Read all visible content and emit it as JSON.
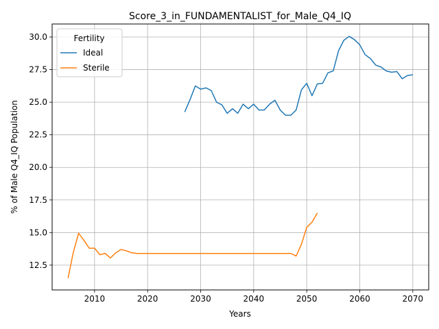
{
  "chart_data": {
    "type": "line",
    "title": "Score_3_in_FUNDAMENTALIST_for_Male_Q4_IQ",
    "xlabel": "Years",
    "ylabel": "% of Male Q4_IQ Population",
    "xlim": [
      2002,
      2073
    ],
    "ylim": [
      10.6,
      31.0
    ],
    "xticks": [
      2010,
      2020,
      2030,
      2040,
      2050,
      2060,
      2070
    ],
    "xtick_labels": [
      "2010",
      "2020",
      "2030",
      "2040",
      "2050",
      "2060",
      "2070"
    ],
    "yticks": [
      12.5,
      15.0,
      17.5,
      20.0,
      22.5,
      25.0,
      27.5,
      30.0
    ],
    "ytick_labels": [
      "12.5",
      "15.0",
      "17.5",
      "20.0",
      "22.5",
      "25.0",
      "27.5",
      "30.0"
    ],
    "grid": true,
    "legend": {
      "title": "Fertility",
      "placement": "top-left"
    },
    "series": [
      {
        "name": "Ideal",
        "color": "#1f77b4",
        "x": [
          2027,
          2028,
          2029,
          2030,
          2031,
          2032,
          2033,
          2034,
          2035,
          2036,
          2037,
          2038,
          2039,
          2040,
          2041,
          2042,
          2043,
          2044,
          2045,
          2046,
          2047,
          2048,
          2049,
          2050,
          2051,
          2052,
          2053,
          2054,
          2055,
          2056,
          2057,
          2058,
          2059,
          2060,
          2061,
          2062,
          2063,
          2064,
          2065,
          2066,
          2067,
          2068,
          2069,
          2070
        ],
        "y": [
          24.25,
          25.2,
          26.25,
          26.0,
          26.1,
          25.9,
          25.0,
          24.8,
          24.15,
          24.5,
          24.15,
          24.85,
          24.5,
          24.85,
          24.4,
          24.4,
          24.85,
          25.15,
          24.4,
          24.0,
          24.0,
          24.4,
          25.95,
          26.45,
          25.5,
          26.4,
          26.45,
          27.25,
          27.4,
          28.95,
          29.75,
          30.05,
          29.8,
          29.4,
          28.65,
          28.35,
          27.85,
          27.7,
          27.4,
          27.3,
          27.35,
          26.8,
          27.05,
          27.1
        ]
      },
      {
        "name": "Sterile",
        "color": "#ff7f0e",
        "x": [
          2005,
          2006,
          2007,
          2008,
          2009,
          2010,
          2011,
          2012,
          2013,
          2014,
          2015,
          2016,
          2017,
          2018,
          2019,
          2020,
          2021,
          2022,
          2023,
          2024,
          2025,
          2026,
          2027,
          2028,
          2029,
          2030,
          2031,
          2032,
          2033,
          2034,
          2035,
          2036,
          2037,
          2038,
          2039,
          2040,
          2041,
          2042,
          2043,
          2044,
          2045,
          2046,
          2047,
          2048,
          2049,
          2050,
          2051,
          2052
        ],
        "y": [
          11.5,
          13.5,
          14.95,
          14.4,
          13.8,
          13.8,
          13.3,
          13.4,
          13.05,
          13.45,
          13.7,
          13.6,
          13.45,
          13.4,
          13.4,
          13.4,
          13.4,
          13.4,
          13.4,
          13.4,
          13.4,
          13.4,
          13.4,
          13.4,
          13.4,
          13.4,
          13.4,
          13.4,
          13.4,
          13.4,
          13.4,
          13.4,
          13.4,
          13.4,
          13.4,
          13.4,
          13.4,
          13.4,
          13.4,
          13.4,
          13.4,
          13.4,
          13.4,
          13.2,
          14.1,
          15.4,
          15.8,
          16.5
        ]
      }
    ]
  }
}
